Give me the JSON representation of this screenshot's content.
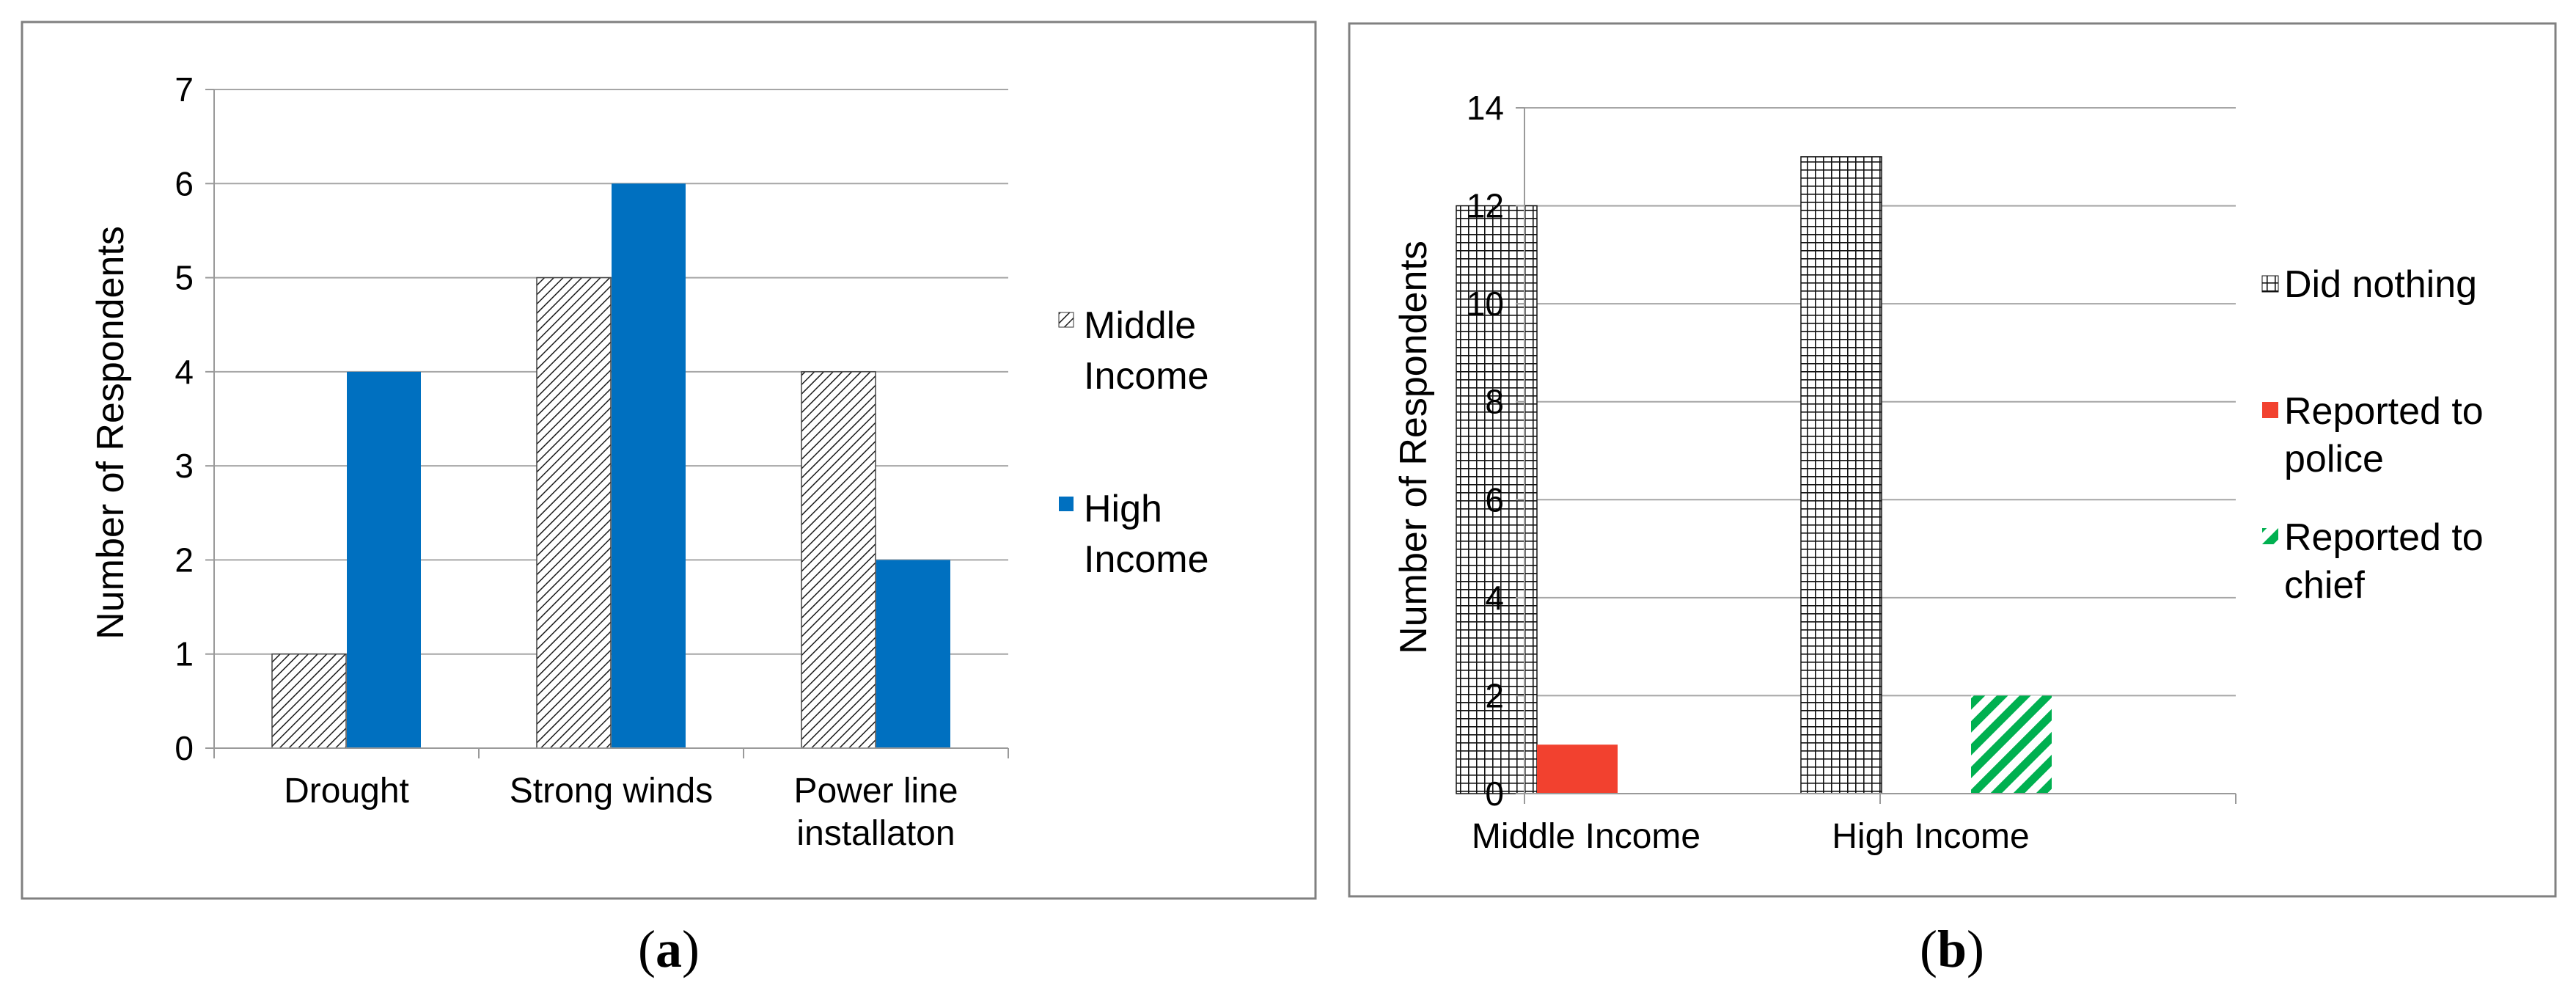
{
  "colors": {
    "high_income": "#0070C0",
    "reported_police": "#F2412F",
    "reported_chief": "#00B050",
    "axis": "#9A9A9A",
    "grid": "#A6A6A6",
    "frame": "#808080"
  },
  "chart_data": [
    {
      "type": "bar",
      "title": "",
      "xlabel": "",
      "ylabel": "Number of Respondents",
      "ylim": [
        0,
        7
      ],
      "yticks": [
        "0",
        "1",
        "2",
        "3",
        "4",
        "5",
        "6",
        "7"
      ],
      "grid": true,
      "legend_position": "right",
      "categories": [
        [
          "Drought"
        ],
        [
          "Strong winds"
        ],
        [
          "Power line",
          "installaton"
        ]
      ],
      "series": [
        {
          "name": [
            "Middle",
            "Income"
          ],
          "pattern": "diagonal-hatch",
          "values": [
            1,
            5,
            4
          ]
        },
        {
          "name": [
            "High",
            "Income"
          ],
          "pattern": "solid-blue",
          "values": [
            4,
            6,
            2
          ]
        }
      ],
      "caption": {
        "open": "(",
        "letter": "a",
        "close": ")"
      }
    },
    {
      "type": "bar",
      "title": "",
      "xlabel": "",
      "ylabel": "Number of Respondents",
      "ylim": [
        0,
        14
      ],
      "yticks": [
        "0",
        "2",
        "4",
        "6",
        "8",
        "10",
        "12",
        "14"
      ],
      "grid": true,
      "legend_position": "right",
      "categories": [
        [
          "Middle Income"
        ],
        [
          "High Income"
        ]
      ],
      "series": [
        {
          "name": [
            "Did nothing"
          ],
          "pattern": "grid-hatch",
          "values": [
            12,
            13
          ]
        },
        {
          "name": [
            "Reported to",
            "police"
          ],
          "pattern": "solid-red",
          "values": [
            1,
            0
          ]
        },
        {
          "name": [
            "Reported to",
            "chief"
          ],
          "pattern": "diagonal-green",
          "values": [
            0,
            2
          ]
        }
      ],
      "caption": {
        "open": "(",
        "letter": "b",
        "close": ")"
      }
    }
  ]
}
